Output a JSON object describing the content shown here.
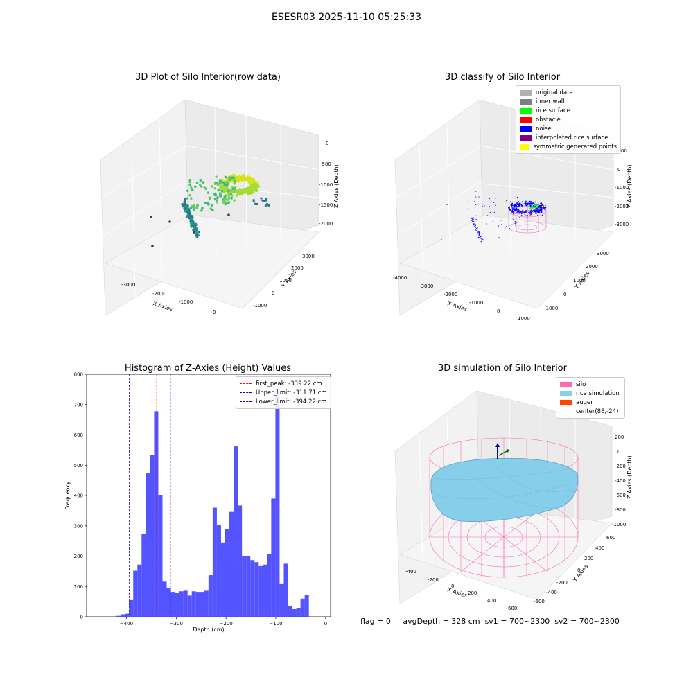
{
  "suptitle": "ESESR03 2025-11-10 05:25:33",
  "colors": {
    "hist_bar": "#4a4aff",
    "first_peak_line": "#ff0000",
    "limit_line": "#0000cc",
    "silo": "#ff69b4",
    "rice_sim": "#87ceeb",
    "auger": "#ff4500"
  },
  "raw_plot": {
    "title": "3D Plot of Silo Interior(row data)",
    "x_label": "X Axies",
    "y_label": "Y Axies",
    "z_label": "Z Axies (Depth)",
    "x_ticks": [
      "-3000",
      "-2000",
      "-1000",
      "0"
    ],
    "y_ticks": [
      "-1000",
      "0",
      "1000",
      "2000",
      "3000"
    ],
    "z_ticks": [
      "0",
      "-500",
      "-1000",
      "-1500",
      "-2000"
    ]
  },
  "classify_plot": {
    "title": "3D classify of Silo Interior",
    "x_label": "X Axies",
    "y_label": "Y Axies",
    "z_label": "Z Axies (Depth)",
    "x_ticks": [
      "-4000",
      "-3000",
      "-2000",
      "-1000",
      "0",
      "1000"
    ],
    "y_ticks": [
      "-1000",
      "0",
      "1000",
      "2000",
      "3000"
    ],
    "z_ticks": [
      "1000",
      "0",
      "-1000",
      "-2000",
      "-3000"
    ],
    "legend": [
      {
        "label": "original data",
        "color": "#b0b0b0"
      },
      {
        "label": "inner wall",
        "color": "#808080"
      },
      {
        "label": "rice surface",
        "color": "#00ff00"
      },
      {
        "label": "obstacle",
        "color": "#ff0000"
      },
      {
        "label": "noise",
        "color": "#0000ff"
      },
      {
        "label": "interpolated rice surface",
        "color": "#800080"
      },
      {
        "label": "symmetric generated points",
        "color": "#ffff00"
      }
    ]
  },
  "simulation_plot": {
    "title": "3D simulation of Silo Interior",
    "x_label": "X Axies",
    "y_label": "Y Axies",
    "z_label": "Z Axies (Depth)",
    "x_ticks": [
      "-400",
      "-200",
      "0",
      "200",
      "400",
      "600"
    ],
    "y_ticks": [
      "-600",
      "-400",
      "-200",
      "0",
      "200",
      "400",
      "600"
    ],
    "z_ticks": [
      "200",
      "0",
      "-200",
      "-400",
      "-600",
      "-800",
      "-1000"
    ],
    "legend": [
      {
        "label": "silo",
        "color": "#ff69b4"
      },
      {
        "label": "rice simulation",
        "color": "#87ceeb"
      },
      {
        "label": "auger",
        "color": "#ff4500"
      },
      {
        "label": "center(88,-24)",
        "color": ""
      }
    ]
  },
  "footer": {
    "flag": "flag = 0",
    "avg_depth": "avgDepth = 328 cm",
    "sv1": "sv1 = 700~2300",
    "sv2": "sv2 = 700~2300"
  },
  "chart_data": {
    "type": "bar",
    "title": "Histogram of Z-Axies (Height) Values",
    "xlabel": "Depth (cm)",
    "ylabel": "Frequency",
    "xlim": [
      -480,
      10
    ],
    "ylim": [
      0,
      800
    ],
    "x_ticks": [
      -400,
      -300,
      -200,
      -100,
      0
    ],
    "y_ticks": [
      0,
      100,
      200,
      300,
      400,
      500,
      600,
      700,
      800
    ],
    "bin_start": -420,
    "bin_width": 8.4,
    "values": [
      3,
      8,
      10,
      55,
      152,
      172,
      272,
      473,
      534,
      678,
      400,
      116,
      94,
      82,
      78,
      84,
      86,
      70,
      84,
      82,
      82,
      86,
      137,
      360,
      302,
      245,
      290,
      346,
      562,
      367,
      200,
      200,
      187,
      180,
      167,
      172,
      207,
      390,
      755,
      110,
      175,
      36,
      25,
      28,
      60,
      72
    ],
    "vlines": [
      {
        "label": "first_peak: -339.22 cm",
        "x": -339.22,
        "color": "#ff0000"
      },
      {
        "label": "Upper_limit: -311.71 cm",
        "x": -311.71,
        "color": "#0000cc"
      },
      {
        "label": "Lower_limit: -394.22 cm",
        "x": -394.22,
        "color": "#0000cc"
      }
    ],
    "legend_position": "top-right"
  }
}
